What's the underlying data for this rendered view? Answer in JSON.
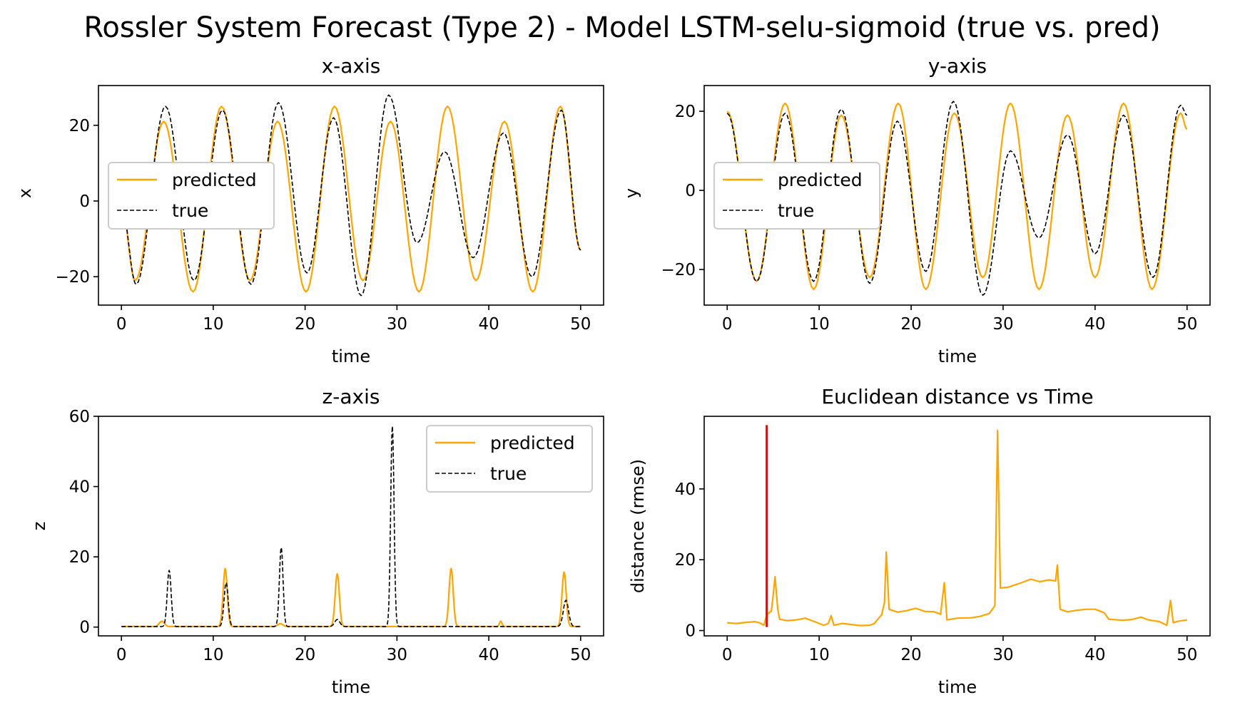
{
  "figure": {
    "title": "Rossler System Forecast (Type 2) - Model LSTM-selu-sigmoid (true vs. pred)"
  },
  "colors": {
    "predicted": "#ffa500",
    "true": "#000000",
    "marker": "#ff0000"
  },
  "chart_data": [
    {
      "type": "line",
      "title": "x-axis",
      "xlabel": "time",
      "ylabel": "x",
      "xlim": [
        -2.5,
        52.5
      ],
      "ylim": [
        -27.5,
        30.5
      ],
      "xticks": [
        0,
        10,
        20,
        30,
        40,
        50
      ],
      "yticks": [
        -20,
        0,
        20
      ],
      "legend": {
        "position": "center-left",
        "entries": [
          "predicted",
          "true"
        ]
      },
      "series": [
        {
          "name": "predicted",
          "style": "solid",
          "peaks": [
            [
              0,
              -1
            ],
            [
              1.5,
              -21
            ],
            [
              4.6,
              21
            ],
            [
              7.8,
              -24
            ],
            [
              10.9,
              25
            ],
            [
              14.0,
              -21
            ],
            [
              17.0,
              21
            ],
            [
              20.1,
              -24
            ],
            [
              23.2,
              25
            ],
            [
              26.3,
              -21
            ],
            [
              29.3,
              21
            ],
            [
              32.4,
              -24
            ],
            [
              35.5,
              25
            ],
            [
              38.6,
              -21
            ],
            [
              41.7,
              21
            ],
            [
              44.8,
              -24
            ],
            [
              47.8,
              25
            ],
            [
              50,
              -13
            ]
          ]
        },
        {
          "name": "true",
          "style": "dashed",
          "peaks": [
            [
              0,
              -1
            ],
            [
              1.6,
              -22
            ],
            [
              4.8,
              25
            ],
            [
              7.9,
              -21
            ],
            [
              11.0,
              24
            ],
            [
              14.1,
              -22
            ],
            [
              17.1,
              26
            ],
            [
              20.2,
              -19
            ],
            [
              23.1,
              22
            ],
            [
              26.1,
              -25
            ],
            [
              29.1,
              28
            ],
            [
              32.2,
              -11
            ],
            [
              35.2,
              13
            ],
            [
              38.3,
              -15
            ],
            [
              41.6,
              18
            ],
            [
              44.7,
              -20
            ],
            [
              47.9,
              24
            ],
            [
              50,
              -13
            ]
          ]
        }
      ]
    },
    {
      "type": "line",
      "title": "y-axis",
      "xlabel": "time",
      "ylabel": "y",
      "xlim": [
        -2.5,
        52.5
      ],
      "ylim": [
        -29,
        26.5
      ],
      "xticks": [
        0,
        10,
        20,
        30,
        40,
        50
      ],
      "yticks": [
        -20,
        0,
        20
      ],
      "legend": {
        "position": "center-left",
        "entries": [
          "predicted",
          "true"
        ]
      },
      "series": [
        {
          "name": "predicted",
          "style": "solid",
          "peaks": [
            [
              0,
              20
            ],
            [
              3.2,
              -23
            ],
            [
              6.3,
              22
            ],
            [
              9.4,
              -25
            ],
            [
              12.4,
              19
            ],
            [
              15.5,
              -22
            ],
            [
              18.6,
              22
            ],
            [
              21.6,
              -25
            ],
            [
              24.7,
              19.5
            ],
            [
              27.8,
              -22
            ],
            [
              30.8,
              22
            ],
            [
              33.9,
              -25
            ],
            [
              37.0,
              19
            ],
            [
              40.0,
              -22
            ],
            [
              43.1,
              22
            ],
            [
              46.2,
              -25
            ],
            [
              49.3,
              19.5
            ],
            [
              50,
              15.5
            ]
          ]
        },
        {
          "name": "true",
          "style": "dashed",
          "peaks": [
            [
              0,
              19.5
            ],
            [
              3.2,
              -23
            ],
            [
              6.3,
              19.5
            ],
            [
              9.4,
              -23
            ],
            [
              12.4,
              20.5
            ],
            [
              15.5,
              -23.5
            ],
            [
              18.5,
              17.5
            ],
            [
              21.6,
              -20.5
            ],
            [
              24.6,
              22.5
            ],
            [
              27.8,
              -26.5
            ],
            [
              30.8,
              10
            ],
            [
              33.9,
              -12
            ],
            [
              37.0,
              14
            ],
            [
              40.0,
              -16
            ],
            [
              43.1,
              19
            ],
            [
              46.3,
              -22
            ],
            [
              49.3,
              21.5
            ],
            [
              50,
              19
            ]
          ]
        }
      ]
    },
    {
      "type": "line",
      "title": "z-axis",
      "xlabel": "time",
      "ylabel": "z",
      "xlim": [
        -2.5,
        52.5
      ],
      "ylim": [
        -2.5,
        60.0
      ],
      "xticks": [
        0,
        10,
        20,
        30,
        40,
        50
      ],
      "yticks": [
        0,
        20,
        40,
        60
      ],
      "legend": {
        "position": "top-right",
        "entries": [
          "predicted",
          "true"
        ]
      },
      "series": [
        {
          "name": "predicted",
          "style": "solid",
          "spikes": [
            [
              4.4,
              1.5,
              0.4
            ],
            [
              11.3,
              16.5,
              0.32
            ],
            [
              17.3,
              0.8,
              0.4
            ],
            [
              23.5,
              15,
              0.32
            ],
            [
              35.9,
              16.5,
              0.32
            ],
            [
              41.3,
              1.5,
              0.2
            ],
            [
              48.2,
              15.5,
              0.32
            ]
          ]
        },
        {
          "name": "true",
          "style": "dashed",
          "spikes": [
            [
              5.2,
              16,
              0.3
            ],
            [
              11.4,
              12.5,
              0.32
            ],
            [
              17.4,
              22.5,
              0.28
            ],
            [
              23.5,
              2,
              0.4
            ],
            [
              29.5,
              57,
              0.26
            ],
            [
              48.4,
              7.5,
              0.4
            ]
          ]
        }
      ]
    },
    {
      "type": "line",
      "title": "Euclidean distance vs Time",
      "xlabel": "time",
      "ylabel": "distance (rmse)",
      "xlim": [
        -2.5,
        52.5
      ],
      "ylim": [
        -1.5,
        60.5
      ],
      "xticks": [
        0,
        10,
        20,
        30,
        40,
        50
      ],
      "yticks": [
        0,
        20,
        40
      ],
      "series": [
        {
          "name": "distance",
          "style": "solid",
          "points": [
            [
              0,
              2.2
            ],
            [
              1,
              2.0
            ],
            [
              2,
              2.3
            ],
            [
              3,
              2.5
            ],
            [
              3.5,
              2.2
            ],
            [
              4.0,
              1.5
            ],
            [
              4.3,
              4.5
            ],
            [
              4.8,
              5.5
            ],
            [
              5.0,
              10
            ],
            [
              5.2,
              15.2
            ],
            [
              5.5,
              6
            ],
            [
              5.7,
              3.2
            ],
            [
              6.5,
              2.8
            ],
            [
              7.5,
              3.0
            ],
            [
              8.5,
              3.5
            ],
            [
              9.5,
              2.5
            ],
            [
              10.5,
              1.5
            ],
            [
              11.0,
              2
            ],
            [
              11.3,
              4.2
            ],
            [
              11.6,
              1.5
            ],
            [
              12.5,
              2.0
            ],
            [
              13.5,
              1.7
            ],
            [
              14.5,
              1.4
            ],
            [
              15.5,
              1.5
            ],
            [
              16.0,
              2.0
            ],
            [
              16.8,
              4.5
            ],
            [
              17.1,
              8
            ],
            [
              17.3,
              22.2
            ],
            [
              17.6,
              6
            ],
            [
              18.5,
              5.2
            ],
            [
              19.5,
              5.6
            ],
            [
              20.5,
              6.3
            ],
            [
              21.5,
              5.4
            ],
            [
              22.5,
              5.3
            ],
            [
              23.2,
              4.6
            ],
            [
              23.6,
              13.5
            ],
            [
              23.9,
              3
            ],
            [
              25,
              3.5
            ],
            [
              26.5,
              3.6
            ],
            [
              27.5,
              4.0
            ],
            [
              28.5,
              4.8
            ],
            [
              29.1,
              7
            ],
            [
              29.4,
              56.5
            ],
            [
              29.7,
              12
            ],
            [
              30.5,
              12.2
            ],
            [
              32.0,
              13.5
            ],
            [
              33.0,
              14.5
            ],
            [
              34.0,
              13.8
            ],
            [
              35.0,
              14.3
            ],
            [
              35.7,
              14.0
            ],
            [
              35.9,
              18.5
            ],
            [
              36.2,
              6
            ],
            [
              37,
              5.3
            ],
            [
              38,
              5.7
            ],
            [
              39,
              6.0
            ],
            [
              40,
              6.0
            ],
            [
              41,
              5.0
            ],
            [
              41.5,
              3.2
            ],
            [
              43,
              2.9
            ],
            [
              44,
              3.1
            ],
            [
              45,
              3.8
            ],
            [
              45.8,
              3.0
            ],
            [
              47,
              2.5
            ],
            [
              47.8,
              1.5
            ],
            [
              48.2,
              8.5
            ],
            [
              48.5,
              2.2
            ],
            [
              49,
              2.6
            ],
            [
              50,
              3.0
            ]
          ]
        }
      ],
      "marker_line": {
        "x": 4.3,
        "y_from": 1,
        "y_to": 58
      }
    }
  ]
}
